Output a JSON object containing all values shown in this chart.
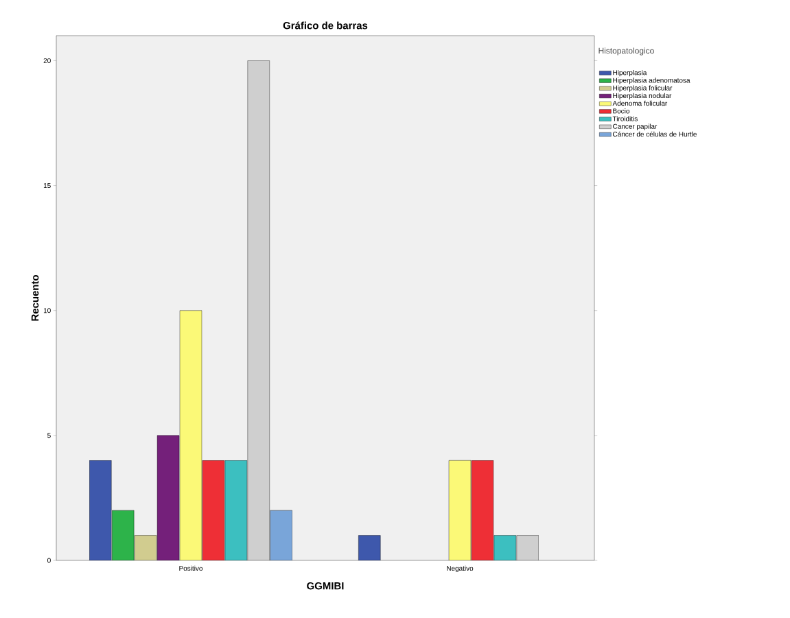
{
  "chart_data": {
    "type": "bar",
    "title": "Gráfico de barras",
    "xlabel": "GGMIBI",
    "ylabel": "Recuento",
    "legend_title": "Histopatologico",
    "categories": [
      "Positivo",
      "Negativo"
    ],
    "series": [
      {
        "name": "Hiperplasia",
        "color": "#3e58ac",
        "values": [
          4,
          1
        ]
      },
      {
        "name": "Hiperplasia adenomatosa",
        "color": "#2db34a",
        "values": [
          2,
          null
        ]
      },
      {
        "name": "Hiperplasia folicular",
        "color": "#d1cc8f",
        "values": [
          1,
          null
        ]
      },
      {
        "name": "Hiperplasia nodular",
        "color": "#74207a",
        "values": [
          5,
          null
        ]
      },
      {
        "name": "Adenoma folicular",
        "color": "#fbf977",
        "values": [
          10,
          4
        ]
      },
      {
        "name": "Bocio",
        "color": "#ee2f36",
        "values": [
          4,
          4
        ]
      },
      {
        "name": "Tiroiditis",
        "color": "#3cbfc0",
        "values": [
          4,
          1
        ]
      },
      {
        "name": "Cancer papilar",
        "color": "#cfcfcf",
        "values": [
          20,
          1
        ]
      },
      {
        "name": "Cáncer de células de Hurtle",
        "color": "#79a5d9",
        "values": [
          2,
          null
        ]
      }
    ],
    "ylim": [
      0,
      21
    ],
    "yticks": [
      0,
      5,
      10,
      15,
      20
    ],
    "legend": "top right"
  }
}
